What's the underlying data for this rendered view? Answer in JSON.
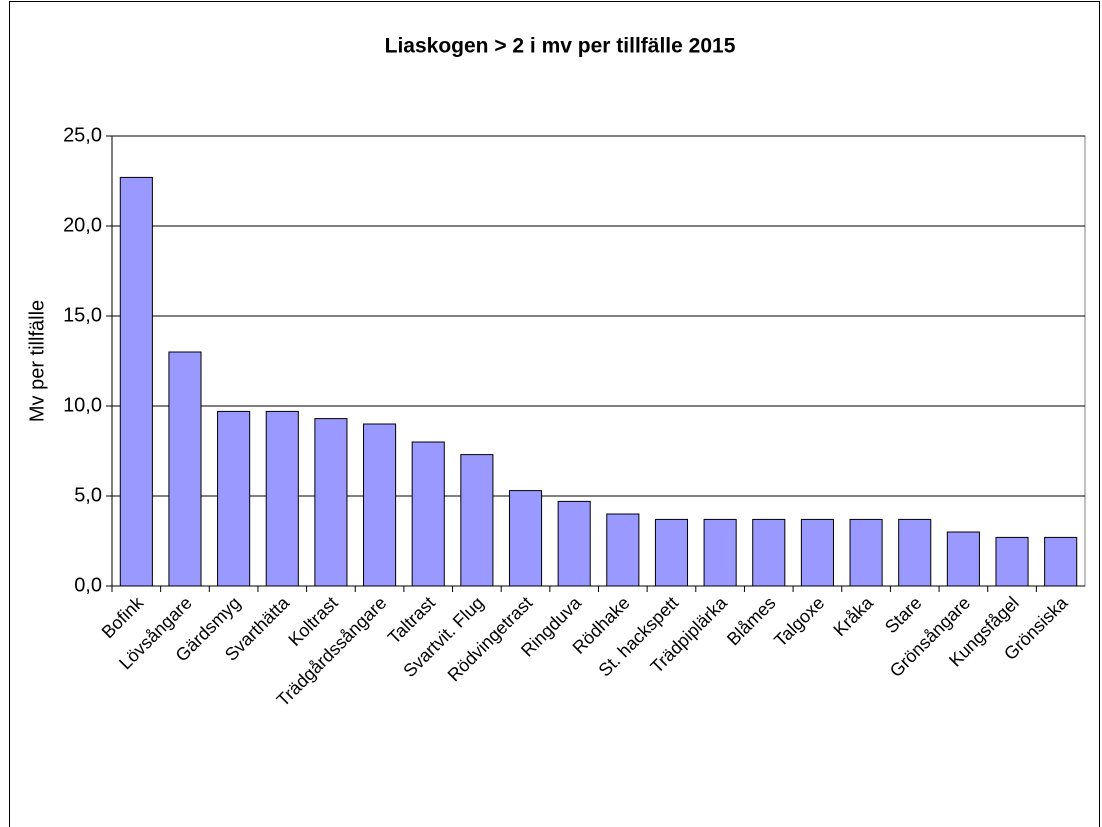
{
  "chart_data": {
    "type": "bar",
    "title": "Liaskogen > 2 i mv per tillfälle 2015",
    "y_label": "Mv per tillfälle",
    "categories": [
      "Bofink",
      "Lövsångare",
      "Gärdsmyg",
      "Svarthätta",
      "Koltrast",
      "Trädgårdssångare",
      "Taltrast",
      "Svartvit. Flug",
      "Rödvingetrast",
      "Ringduva",
      "Rödhake",
      "St. hackspett",
      "Trädpiplärka",
      "Blåmes",
      "Talgoxe",
      "Kråka",
      "Stare",
      "Grönsångare",
      "Kungsfågel",
      "Grönsiska"
    ],
    "values": [
      22.7,
      13.0,
      9.7,
      9.7,
      9.3,
      9.0,
      8.0,
      7.3,
      5.3,
      4.7,
      4.0,
      3.7,
      3.7,
      3.7,
      3.7,
      3.7,
      3.7,
      3.0,
      2.7,
      2.7
    ],
    "color": "#9999ff",
    "ylim": [
      0,
      25
    ],
    "yticks": [
      {
        "value": 0,
        "label": "0,0"
      },
      {
        "value": 5,
        "label": "5,0"
      },
      {
        "value": 10,
        "label": "10,0"
      },
      {
        "value": 15,
        "label": "15,0"
      },
      {
        "value": 20,
        "label": "20,0"
      },
      {
        "value": 25,
        "label": "25,0"
      }
    ],
    "grid": true
  }
}
